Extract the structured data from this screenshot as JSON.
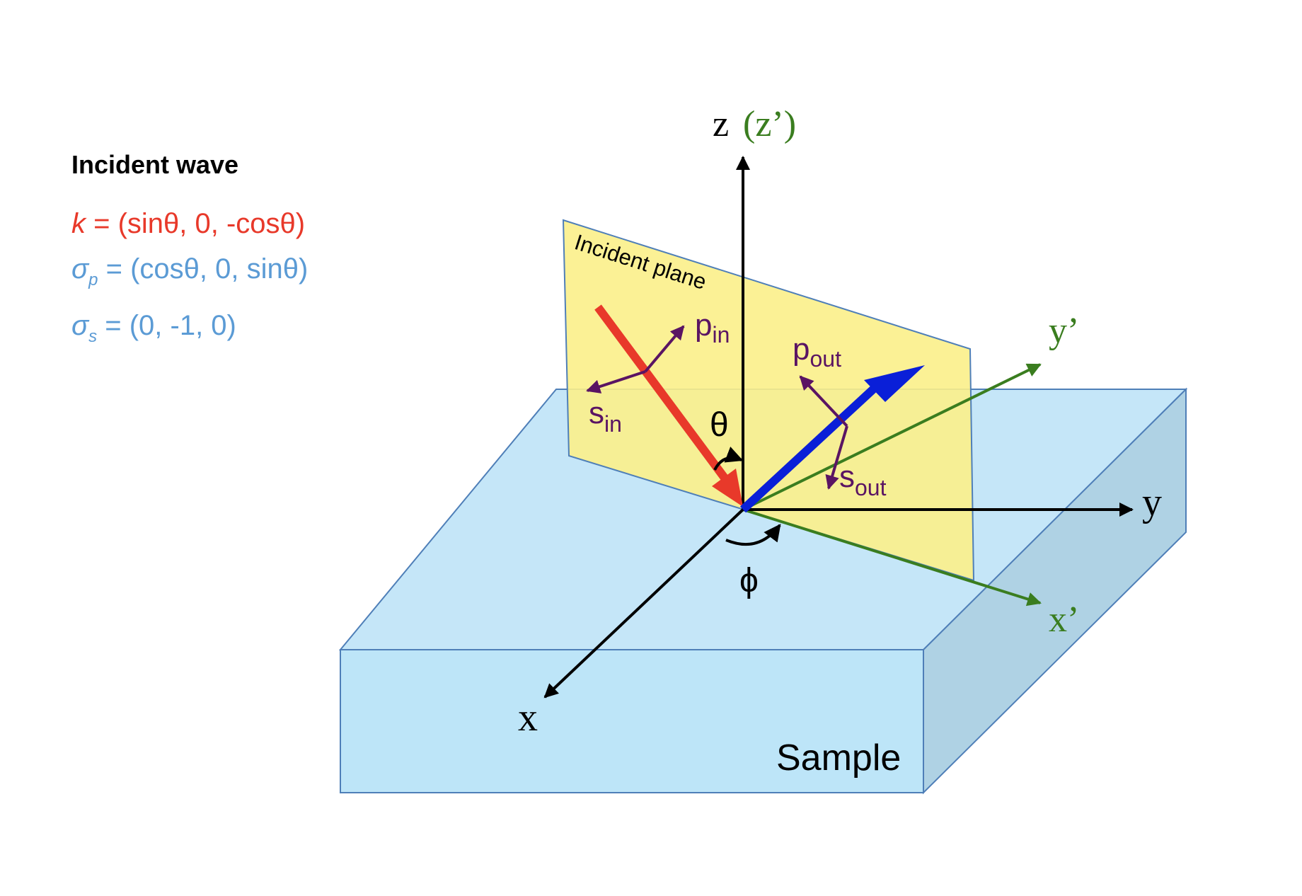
{
  "legend": {
    "title": "Incident wave",
    "k": {
      "symbol": "k",
      "expr": " = (sinθ, 0, -cosθ)"
    },
    "sigma_p": {
      "symbol": "σ",
      "sub": "p",
      "expr": " = (cosθ, 0, sinθ)"
    },
    "sigma_s": {
      "symbol": "σ",
      "sub": "s",
      "expr": " = (0, -1, 0)"
    }
  },
  "labels": {
    "z": "z",
    "z_prime": "(z’)",
    "y": "y",
    "x": "x",
    "y_prime": "y’",
    "x_prime": "x’",
    "theta": "θ",
    "phi": "ϕ",
    "incident_plane": "Incident plane",
    "sample": "Sample",
    "p_in": {
      "base": "p",
      "sub": "in"
    },
    "s_in": {
      "base": "s",
      "sub": "in"
    },
    "p_out": {
      "base": "p",
      "sub": "out"
    },
    "s_out": {
      "base": "s",
      "sub": "out"
    }
  },
  "colors": {
    "incident": "#e8392a",
    "reflected": "#0a1fd8",
    "legend_k": "#e8392a",
    "legend_sigma": "#5b9bd5",
    "prime_axes": "#3a7d1f",
    "polarization": "#5a1463",
    "plane_fill": "#fbef8a",
    "sample_top": "#c5e6f8",
    "sample_side": "#afd2e4",
    "sample_edge": "#4f7fb8"
  }
}
